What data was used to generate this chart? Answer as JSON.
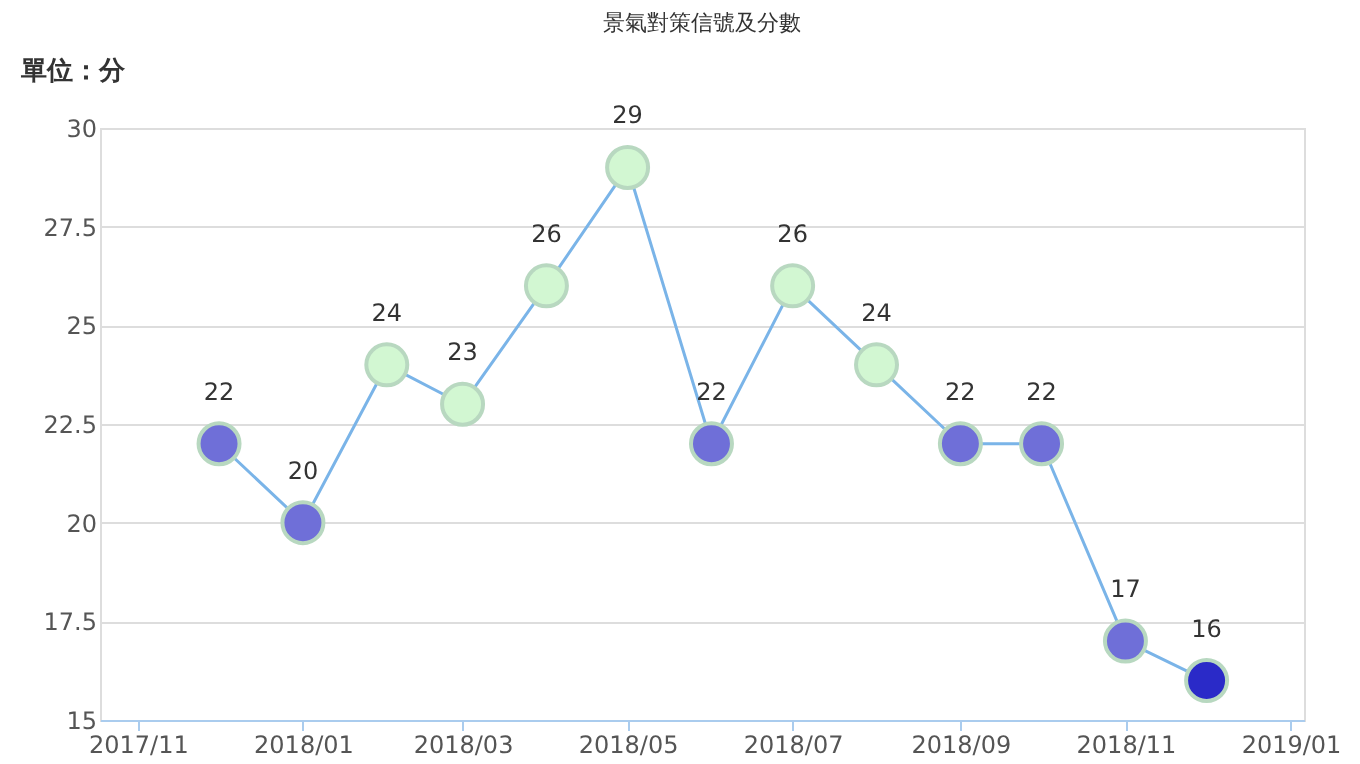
{
  "chart_data": {
    "type": "line",
    "title": "景氣對策信號及分數",
    "ylabel": "單位：分",
    "x": [
      "2017-12",
      "2018-01",
      "2018-02",
      "2018-03",
      "2018-04",
      "2018-05",
      "2018-06",
      "2018-07",
      "2018-08",
      "2018-09",
      "2018-10",
      "2018-11",
      "2018-12"
    ],
    "series": [
      {
        "color": "#7ab4e8",
        "values": [
          22,
          20,
          24,
          23,
          26,
          29,
          22,
          26,
          24,
          22,
          22,
          17,
          16
        ],
        "colors": [
          "#6f6fd8",
          "#6f6fd8",
          "#d2f7d2",
          "#d2f7d2",
          "#d2f7d2",
          "#d2f7d2",
          "#6f6fd8",
          "#d2f7d2",
          "#d2f7d2",
          "#6f6fd8",
          "#6f6fd8",
          "#6f6fd8",
          "#2a2ac8"
        ]
      }
    ],
    "xlim": [
      "2017-10-18",
      "2019-01-06"
    ],
    "xticks": [
      {
        "value": "2017-11",
        "label": "2017/11"
      },
      {
        "value": "2018-01",
        "label": "2018/01"
      },
      {
        "value": "2018-03",
        "label": "2018/03"
      },
      {
        "value": "2018-05",
        "label": "2018/05"
      },
      {
        "value": "2018-07",
        "label": "2018/07"
      },
      {
        "value": "2018-09",
        "label": "2018/09"
      },
      {
        "value": "2018-11",
        "label": "2018/11"
      },
      {
        "value": "2019-01",
        "label": "2019/01"
      }
    ],
    "ylim": [
      15,
      30
    ],
    "yticks": [
      15,
      17.5,
      20,
      22.5,
      25,
      27.5,
      30
    ],
    "grid": "y",
    "marker": "circle",
    "data_labels": true
  }
}
